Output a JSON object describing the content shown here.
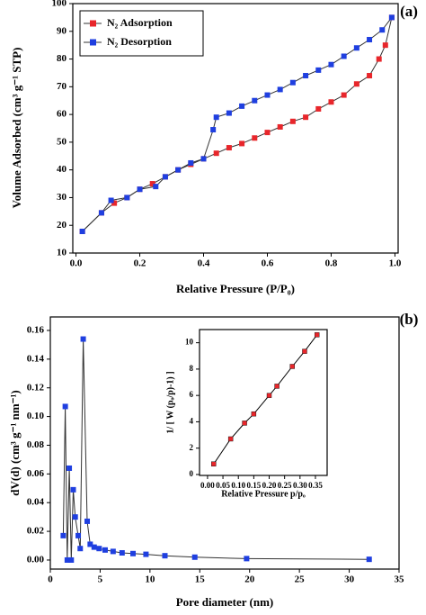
{
  "chart_data": [
    {
      "type": "line",
      "panel_label": "(a)",
      "x_label": "Relative Pressure (P/P₀)",
      "y_label": "Volume Adsorbed (cm³ g⁻¹ STP)",
      "xlim": [
        -0.01,
        1.01
      ],
      "ylim": [
        10,
        100
      ],
      "xticks": [
        {
          "value": 0,
          "label": "0.0"
        },
        0.2,
        0.4,
        0.6,
        0.8,
        {
          "value": 1,
          "label": "1.0"
        }
      ],
      "yticks": [
        10,
        20,
        30,
        40,
        50,
        60,
        70,
        80,
        90,
        100
      ],
      "legend": "upper left",
      "series": [
        {
          "name": "N₂ Adsorption",
          "color": "#e8262b",
          "line_color": "#333333",
          "x": [
            0.02,
            0.08,
            0.12,
            0.16,
            0.2,
            0.24,
            0.28,
            0.32,
            0.36,
            0.4,
            0.44,
            0.48,
            0.52,
            0.56,
            0.6,
            0.64,
            0.68,
            0.72,
            0.76,
            0.8,
            0.84,
            0.88,
            0.92,
            0.95,
            0.97,
            0.99
          ],
          "values": [
            17.8,
            24.5,
            28,
            30,
            33,
            35,
            37.5,
            40,
            42,
            44,
            46,
            48,
            49.5,
            51.5,
            53.5,
            55.5,
            57.5,
            59,
            62,
            64.5,
            67,
            71,
            74,
            80,
            85,
            95
          ]
        },
        {
          "name": "N₂ Desorption",
          "color": "#1f3fe0",
          "line_color": "#333333",
          "x": [
            0.99,
            0.96,
            0.92,
            0.88,
            0.84,
            0.8,
            0.76,
            0.72,
            0.68,
            0.64,
            0.6,
            0.56,
            0.52,
            0.48,
            0.44,
            0.43,
            0.4,
            0.36,
            0.32,
            0.28,
            0.25,
            0.2,
            0.16,
            0.11,
            0.08,
            0.02
          ],
          "values": [
            95,
            90.5,
            87,
            84,
            81,
            78,
            76,
            74,
            71.5,
            69,
            67,
            65,
            63,
            60.5,
            59,
            54.5,
            44,
            42.5,
            40,
            37.5,
            34,
            33,
            30,
            29,
            24.5,
            17.8
          ]
        }
      ]
    },
    {
      "type": "line",
      "panel_label": "(b)",
      "x_label": "Pore diameter (nm)",
      "y_label": "dV(d) (cm³ g⁻¹ nm⁻¹)",
      "xlim": [
        0,
        35
      ],
      "ylim": [
        -0.0063,
        0.1694
      ],
      "xticks": [
        0,
        5,
        10,
        15,
        20,
        25,
        30,
        35
      ],
      "yticks": [
        {
          "value": 0,
          "label": "0.00"
        },
        0.02,
        0.04,
        0.06,
        0.08,
        {
          "value": 0.1,
          "label": "0.10"
        },
        0.12,
        0.14,
        0.16
      ],
      "series": [
        {
          "color": "#1f3fe0",
          "line_color": "#333333",
          "x": [
            1.3,
            1.5,
            1.7,
            1.9,
            2.1,
            2.3,
            2.5,
            2.8,
            3.0,
            3.3,
            3.7,
            4.0,
            4.4,
            4.9,
            5.5,
            6.3,
            7.2,
            8.3,
            9.6,
            11.5,
            14.5,
            19.7,
            32
          ],
          "values": [
            0.017,
            0.107,
            0,
            0.064,
            0,
            0.049,
            0.03,
            0.017,
            0.008,
            0.154,
            0.027,
            0.011,
            0.009,
            0.008,
            0.007,
            0.006,
            0.005,
            0.0045,
            0.004,
            0.003,
            0.002,
            0.001,
            0.0005
          ]
        }
      ]
    },
    {
      "type": "line",
      "x_label": "Relative Pressure p/pₒ",
      "y_label": "1/ [ W (pₒ/p)-1) ]",
      "xlim": [
        -0.026,
        0.388
      ],
      "ylim": [
        -0.07,
        11
      ],
      "xticks": [
        {
          "value": 0,
          "label": "0.00"
        },
        0.05,
        {
          "value": 0.1,
          "label": "0.10"
        },
        0.15,
        {
          "value": 0.2,
          "label": "0.20"
        },
        0.25,
        {
          "value": 0.3,
          "label": "0.30"
        },
        0.35
      ],
      "yticks": [
        0,
        2,
        4,
        6,
        8,
        10
      ],
      "series": [
        {
          "color": "#e8262b",
          "line_color": "#000000",
          "x": [
            0.02,
            0.075,
            0.12,
            0.15,
            0.2,
            0.225,
            0.275,
            0.315,
            0.355
          ],
          "values": [
            0.8,
            2.7,
            3.9,
            4.6,
            6.0,
            6.7,
            8.2,
            9.35,
            10.6
          ]
        }
      ]
    }
  ]
}
